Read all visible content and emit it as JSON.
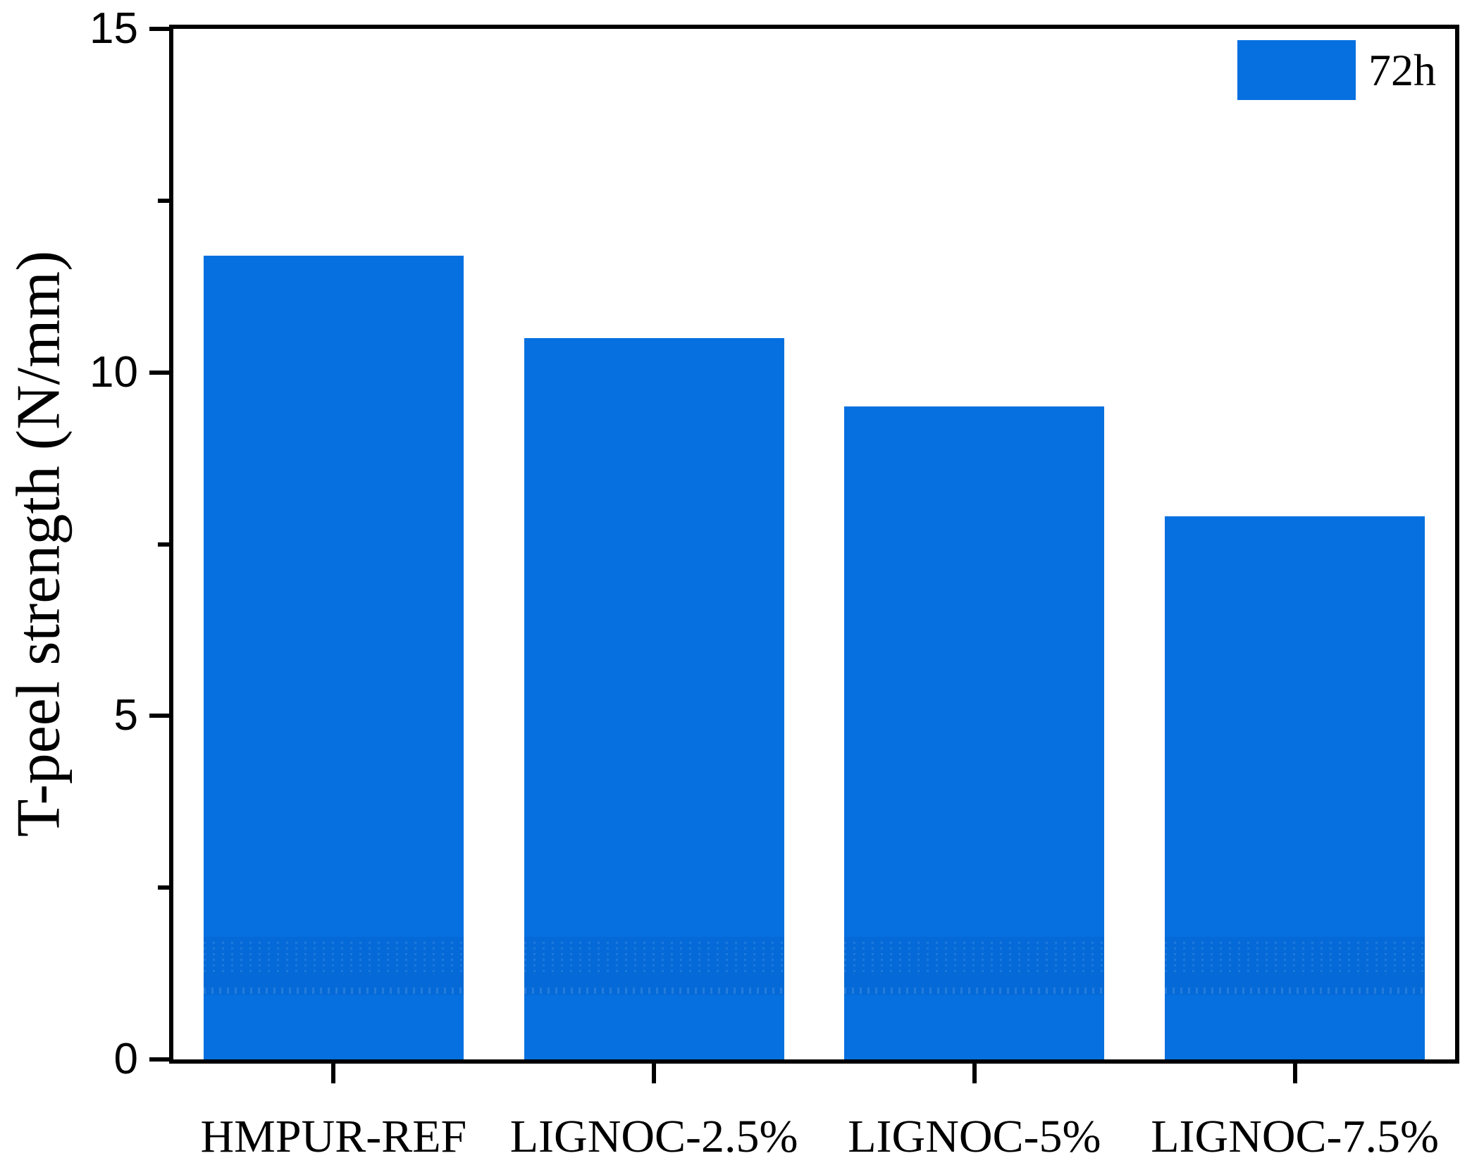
{
  "chart_data": {
    "type": "bar",
    "categories": [
      "HMPUR-REF",
      "LIGNOC-2.5%",
      "LIGNOC-5%",
      "LIGNOC-7.5%"
    ],
    "series": [
      {
        "name": "72h",
        "values": [
          11.7,
          10.5,
          9.5,
          7.9
        ]
      }
    ],
    "title": "",
    "xlabel": "",
    "ylabel": "T-peel strength (N/mm)",
    "ylim": [
      0,
      15
    ],
    "yticks_major": [
      0,
      5,
      10,
      15
    ],
    "ytick_labels": [
      "0",
      "5",
      "10",
      "15"
    ],
    "yticks_minor": [
      2.5,
      7.5,
      12.5
    ],
    "grid": false,
    "legend_position": "top-right",
    "bar_color": "#0670E0"
  },
  "legend": {
    "label": "72h",
    "swatch_color": "#0670E0"
  },
  "colors": {
    "axis": "#000000",
    "background": "#ffffff"
  }
}
